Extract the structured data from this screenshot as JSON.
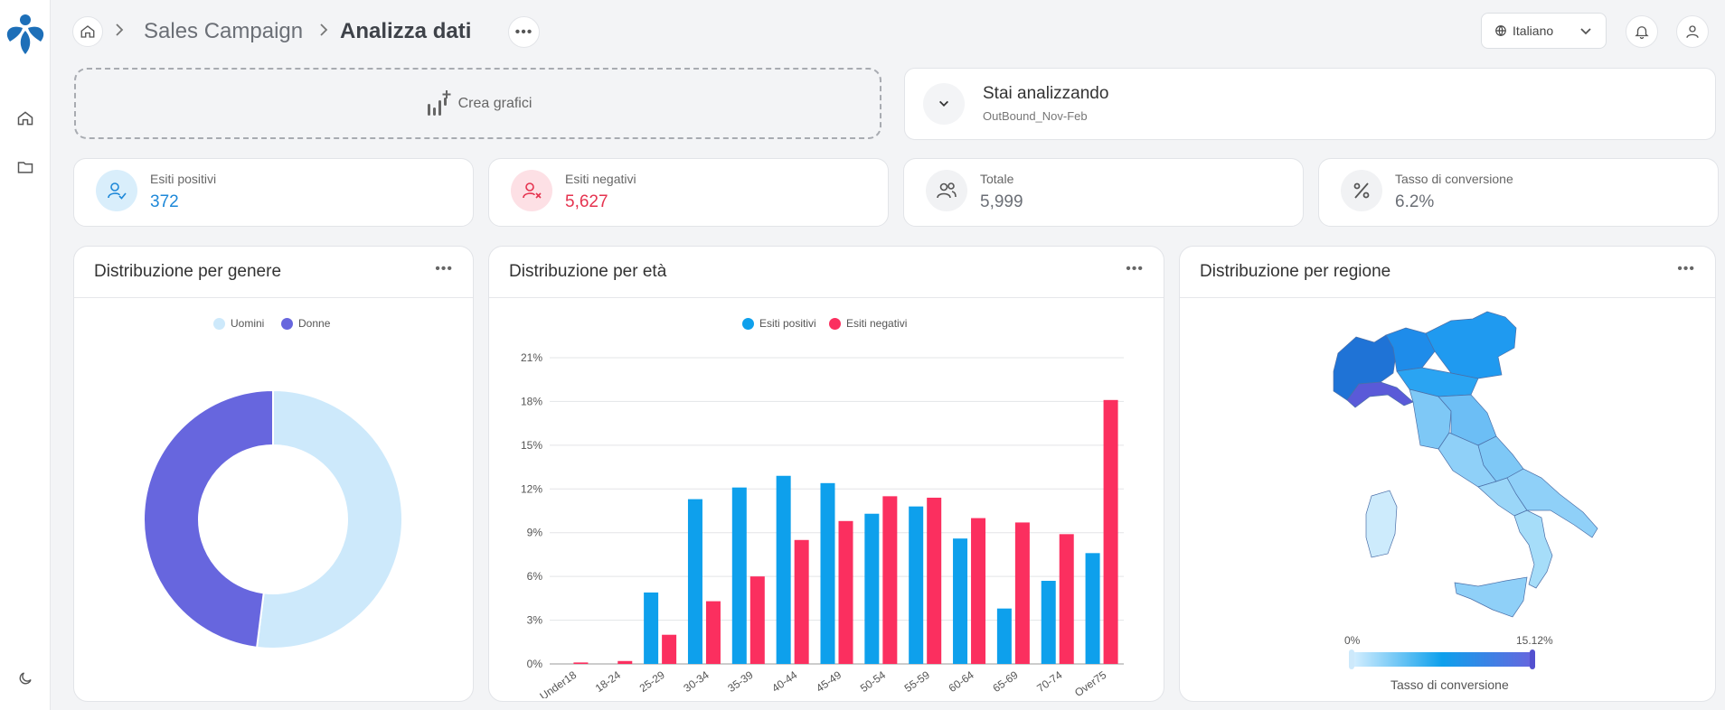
{
  "breadcrumb": {
    "parent": "Sales Campaign",
    "current": "Analizza dati"
  },
  "header": {
    "language": "Italiano"
  },
  "toolbar": {
    "create_label": "Crea grafici"
  },
  "analysis": {
    "title": "Stai analizzando",
    "dataset": "OutBound_Nov-Feb"
  },
  "stats": [
    {
      "label": "Esiti positivi",
      "value": "372",
      "color": "#1e88d8",
      "icon": "user-check-icon"
    },
    {
      "label": "Esiti negativi",
      "value": "5,627",
      "color": "#e5334f",
      "icon": "user-x-icon"
    },
    {
      "label": "Totale",
      "value": "5,999",
      "color": "#6b6f76",
      "icon": "users-icon"
    },
    {
      "label": "Tasso di conversione",
      "value": "6.2%",
      "color": "#6b6f76",
      "icon": "percent-icon"
    }
  ],
  "cards": {
    "gender": {
      "title": "Distribuzione per genere"
    },
    "age": {
      "title": "Distribuzione per età"
    },
    "region": {
      "title": "Distribuzione per regione",
      "scale_min": "0%",
      "scale_max": "15.12%",
      "scale_label": "Tasso di conversione"
    }
  },
  "chart_data": [
    {
      "type": "pie",
      "legend_position": "top",
      "series": [
        {
          "name": "Uomini",
          "value": 52,
          "color": "#cde9fb"
        },
        {
          "name": "Donne",
          "value": 48,
          "color": "#6766de"
        }
      ]
    },
    {
      "type": "bar",
      "legend_position": "top",
      "categories": [
        "Under18",
        "18-24",
        "25-29",
        "30-34",
        "35-39",
        "40-44",
        "45-49",
        "50-54",
        "55-59",
        "60-64",
        "65-69",
        "70-74",
        "Over75"
      ],
      "ylim": [
        0,
        21
      ],
      "yticks": [
        "0%",
        "3%",
        "6%",
        "9%",
        "12%",
        "15%",
        "18%",
        "21%"
      ],
      "grid": true,
      "series": [
        {
          "name": "Esiti positivi",
          "color": "#0ea0ec",
          "values": [
            0,
            0,
            4.9,
            11.3,
            12.1,
            12.9,
            12.4,
            10.3,
            10.8,
            8.6,
            3.8,
            5.7,
            7.6
          ]
        },
        {
          "name": "Esiti negativi",
          "color": "#fb2f5f",
          "values": [
            0.1,
            0.2,
            2.0,
            4.3,
            6.0,
            8.5,
            9.8,
            11.5,
            11.4,
            10.0,
            9.7,
            8.9,
            18.1
          ]
        }
      ]
    }
  ]
}
